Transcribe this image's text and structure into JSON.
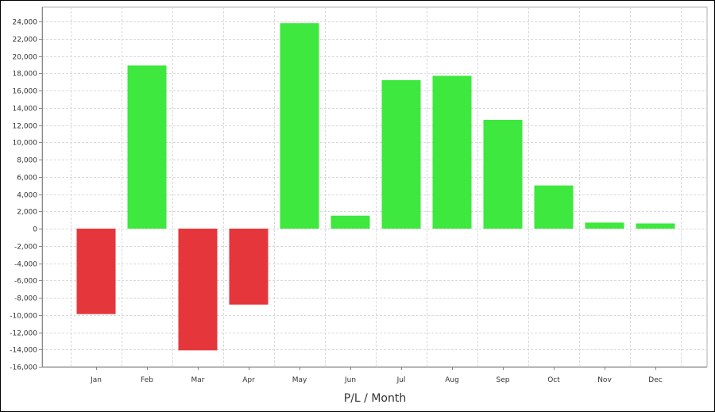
{
  "chart_data": {
    "type": "bar",
    "title": "",
    "xlabel": "P/L / Month",
    "ylabel": "",
    "categories": [
      "Jan",
      "Feb",
      "Mar",
      "Apr",
      "May",
      "Jun",
      "Jul",
      "Aug",
      "Sep",
      "Oct",
      "Nov",
      "Dec"
    ],
    "values": [
      -9900,
      18900,
      -14100,
      -8800,
      23800,
      1500,
      17200,
      17700,
      12600,
      5000,
      700,
      600
    ],
    "ylim": [
      -16000,
      25000
    ],
    "yticks": [
      24000,
      22000,
      20000,
      18000,
      16000,
      14000,
      12000,
      10000,
      8000,
      6000,
      4000,
      2000,
      0,
      -2000,
      -4000,
      -6000,
      -8000,
      -10000,
      -12000,
      -14000,
      -16000
    ],
    "ytick_labels": [
      "24,000",
      "22,000",
      "20,000",
      "18,000",
      "16,000",
      "14,000",
      "12,000",
      "10,000",
      "8,000",
      "6,000",
      "4,000",
      "2,000",
      "0",
      "-2,000",
      "-4,000",
      "-6,000",
      "-8,000",
      "-10,000",
      "-12,000",
      "-14,000",
      "-16,000"
    ],
    "grid": true,
    "legend": "none",
    "colors": {
      "positive": "#3ee83e",
      "negative": "#e5373b",
      "grid": "#d9d9d9",
      "axis": "#888888"
    }
  }
}
